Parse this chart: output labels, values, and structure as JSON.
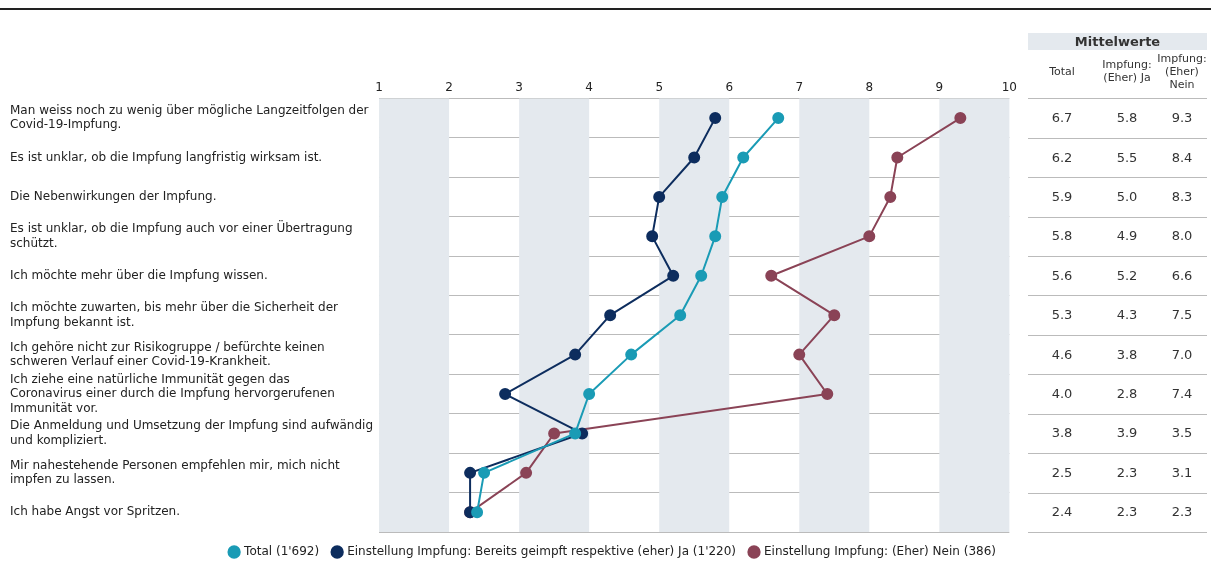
{
  "chart_data": {
    "type": "line",
    "orientation": "horizontal",
    "categories": [
      "Man weiss noch zu wenig über mögliche Langzeitfolgen der Covid-19-Impfung.",
      "Es ist unklar, ob die Impfung langfristig wirksam ist.",
      "Die Nebenwirkungen der Impfung.",
      "Es ist unklar, ob die Impfung auch vor einer Übertragung schützt.",
      "Ich möchte mehr über die Impfung wissen.",
      "Ich möchte zuwarten, bis mehr über die Sicherheit der Impfung bekannt ist.",
      "Ich gehöre nicht zur Risikogruppe / befürchte keinen schweren Verlauf einer Covid-19-Krankheit.",
      "Ich ziehe eine natürliche Immunität gegen das Coronavirus einer durch die Impfung hervorgerufenen Immunität vor.",
      "Die Anmeldung und Umsetzung der Impfung sind aufwändig und kompliziert.",
      "Mir nahestehende Personen empfehlen mir, mich nicht impfen zu lassen.",
      "Ich habe Angst vor Spritzen."
    ],
    "series": [
      {
        "name": "Total (1'692)",
        "color": "#1a9bb5",
        "values": [
          6.7,
          6.2,
          5.9,
          5.8,
          5.6,
          5.3,
          4.6,
          4.0,
          3.8,
          2.5,
          2.4
        ],
        "value_labels": [
          "6.7",
          "6.2",
          "5.9",
          "5.8",
          "5.6",
          "5.3",
          "4.6",
          "4.0",
          "3.8",
          "2.5",
          "2.4"
        ]
      },
      {
        "name": "Einstellung Impfung: Bereits geimpft respektive (eher) Ja (1'220)",
        "color": "#0d2d5e",
        "values": [
          5.8,
          5.5,
          5.0,
          4.9,
          5.2,
          4.3,
          3.8,
          2.8,
          3.9,
          2.3,
          2.3
        ],
        "value_labels": [
          "5.8",
          "5.5",
          "5.0",
          "4.9",
          "5.2",
          "4.3",
          "3.8",
          "2.8",
          "3.9",
          "2.3",
          "2.3"
        ]
      },
      {
        "name": "Einstellung Impfung: (Eher) Nein (386)",
        "color": "#8a4356",
        "values": [
          9.3,
          8.4,
          8.3,
          8.0,
          6.6,
          7.5,
          7.0,
          7.4,
          3.5,
          3.1,
          2.3
        ],
        "value_labels": [
          "9.3",
          "8.4",
          "8.3",
          "8.0",
          "6.6",
          "7.5",
          "7.0",
          "7.4",
          "3.5",
          "3.1",
          "2.3"
        ]
      }
    ],
    "xlim": [
      1,
      10
    ],
    "xticks": [
      1,
      2,
      3,
      4,
      5,
      6,
      7,
      8,
      9,
      10
    ],
    "bands": [
      {
        "axis": "x",
        "from": 1,
        "to": 2,
        "color": "#e4e9ee"
      },
      {
        "axis": "x",
        "from": 3,
        "to": 4,
        "color": "#e4e9ee"
      },
      {
        "axis": "x",
        "from": 5,
        "to": 6,
        "color": "#e4e9ee"
      },
      {
        "axis": "x",
        "from": 7,
        "to": 8,
        "color": "#e4e9ee"
      },
      {
        "axis": "x",
        "from": 9,
        "to": 10,
        "color": "#e4e9ee"
      }
    ],
    "grid": "y",
    "legend": "bottom",
    "marker": "circle",
    "line_style": "solid",
    "annotations": [
      "Mittelwerte",
      "Total",
      "Impfung: (Eher) Ja",
      "Impfung: (Eher) Nein"
    ]
  }
}
